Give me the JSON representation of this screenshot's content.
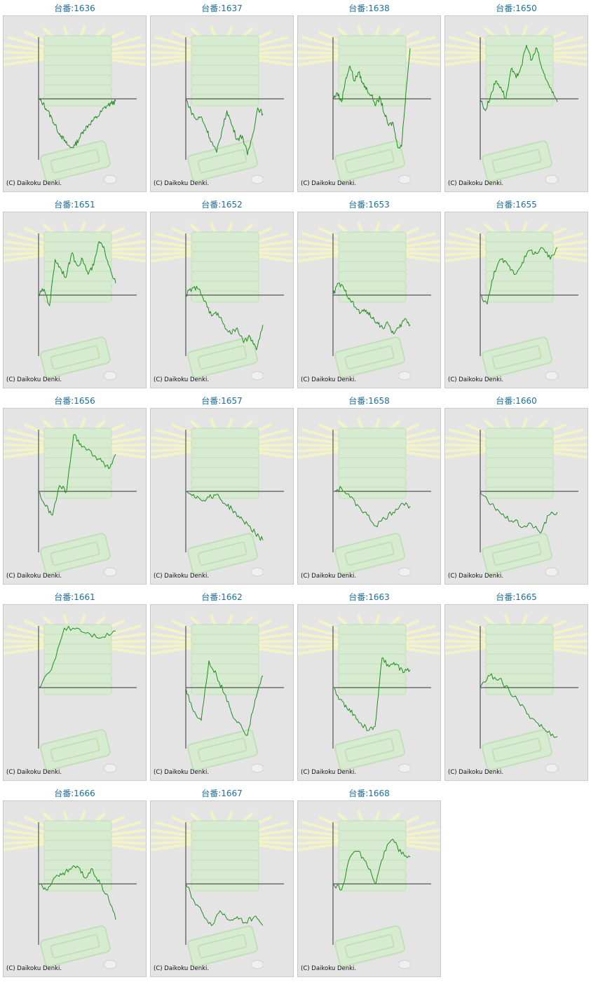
{
  "label_prefix": "台番:",
  "copyright": "(C) Daikoku Denki.",
  "line_color": "#228b22",
  "title_color": "#1f6f9a",
  "chart_data": [
    {
      "type": "line",
      "title": "1636",
      "values": [
        0,
        -0.08,
        -0.2,
        -0.34,
        -0.5,
        -0.62,
        -0.74,
        -0.82,
        -0.78,
        -0.66,
        -0.52,
        -0.44,
        -0.36,
        -0.3,
        -0.2,
        -0.12,
        -0.08,
        -0.04
      ]
    },
    {
      "type": "line",
      "title": "1637",
      "values": [
        0,
        -0.2,
        -0.35,
        -0.3,
        -0.5,
        -0.72,
        -0.9,
        -0.55,
        -0.2,
        -0.45,
        -0.68,
        -0.62,
        -0.94,
        -0.6,
        -0.15,
        -0.25
      ]
    },
    {
      "type": "line",
      "title": "1638",
      "values": [
        0,
        0.1,
        -0.05,
        0.35,
        0.55,
        0.3,
        0.45,
        0.25,
        0.15,
        0.05,
        -0.1,
        0.02,
        -0.25,
        -0.45,
        -0.4,
        -0.78,
        -0.8,
        0.1,
        0.85
      ]
    },
    {
      "type": "line",
      "title": "1650",
      "values": [
        0,
        -0.2,
        0.05,
        0.3,
        0.2,
        0.0,
        0.5,
        0.35,
        0.55,
        0.9,
        0.65,
        0.85,
        0.5,
        0.3,
        0.1,
        -0.05
      ]
    },
    {
      "type": "line",
      "title": "1651",
      "values": [
        0,
        0.1,
        -0.18,
        0.6,
        0.45,
        0.3,
        0.7,
        0.5,
        0.6,
        0.35,
        0.5,
        0.9,
        0.75,
        0.45,
        0.2
      ]
    },
    {
      "type": "line",
      "title": "1652",
      "values": [
        0,
        0.12,
        0.1,
        -0.1,
        -0.35,
        -0.3,
        -0.5,
        -0.65,
        -0.55,
        -0.8,
        -0.7,
        -0.92,
        -0.5
      ]
    },
    {
      "type": "line",
      "title": "1653",
      "values": [
        0,
        0.2,
        0.1,
        -0.05,
        -0.2,
        -0.3,
        -0.25,
        -0.38,
        -0.45,
        -0.55,
        -0.48,
        -0.65,
        -0.55,
        -0.4,
        -0.5
      ]
    },
    {
      "type": "line",
      "title": "1655",
      "values": [
        0,
        -0.15,
        0.4,
        0.6,
        0.5,
        0.35,
        0.55,
        0.75,
        0.7,
        0.78,
        0.6,
        0.8
      ]
    },
    {
      "type": "line",
      "title": "1656",
      "values": [
        0,
        -0.25,
        -0.4,
        0.1,
        0.0,
        0.95,
        0.8,
        0.7,
        0.6,
        0.5,
        0.38,
        0.62
      ]
    },
    {
      "type": "line",
      "title": "1657",
      "values": [
        0,
        -0.05,
        -0.15,
        -0.1,
        -0.05,
        -0.2,
        -0.3,
        -0.45,
        -0.55,
        -0.7,
        -0.82
      ]
    },
    {
      "type": "line",
      "title": "1658",
      "values": [
        0,
        0.05,
        -0.1,
        -0.25,
        -0.4,
        -0.58,
        -0.45,
        -0.35,
        -0.2,
        -0.25
      ]
    },
    {
      "type": "line",
      "title": "1660",
      "values": [
        0,
        -0.2,
        -0.3,
        -0.45,
        -0.5,
        -0.6,
        -0.55,
        -0.7,
        -0.4,
        -0.35
      ]
    },
    {
      "type": "line",
      "title": "1661",
      "values": [
        0,
        0.3,
        1.0,
        1.0,
        0.9,
        0.85,
        0.95
      ]
    },
    {
      "type": "line",
      "title": "1662",
      "values": [
        0,
        -0.4,
        -0.55,
        0.45,
        0.2,
        -0.1,
        -0.45,
        -0.6,
        -0.8,
        -0.2,
        0.2
      ]
    },
    {
      "type": "line",
      "title": "1663",
      "values": [
        0,
        -0.2,
        -0.35,
        -0.45,
        -0.6,
        -0.72,
        -0.65,
        0.5,
        0.35,
        0.4,
        0.25,
        0.3
      ]
    },
    {
      "type": "line",
      "title": "1665",
      "values": [
        0,
        0.2,
        0.15,
        -0.05,
        -0.25,
        -0.45,
        -0.6,
        -0.75,
        -0.82
      ]
    },
    {
      "type": "line",
      "title": "1666",
      "values": [
        0,
        -0.1,
        0.1,
        0.15,
        0.25,
        0.3,
        0.1,
        0.25,
        0.0,
        -0.2,
        -0.6
      ]
    },
    {
      "type": "line",
      "title": "1667",
      "values": [
        0,
        -0.3,
        -0.5,
        -0.7,
        -0.45,
        -0.6,
        -0.55,
        -0.65,
        -0.55,
        -0.7
      ]
    },
    {
      "type": "line",
      "title": "1668",
      "values": [
        0,
        -0.1,
        0.45,
        0.55,
        0.3,
        0.0,
        0.55,
        0.75,
        0.5,
        0.45
      ]
    }
  ]
}
